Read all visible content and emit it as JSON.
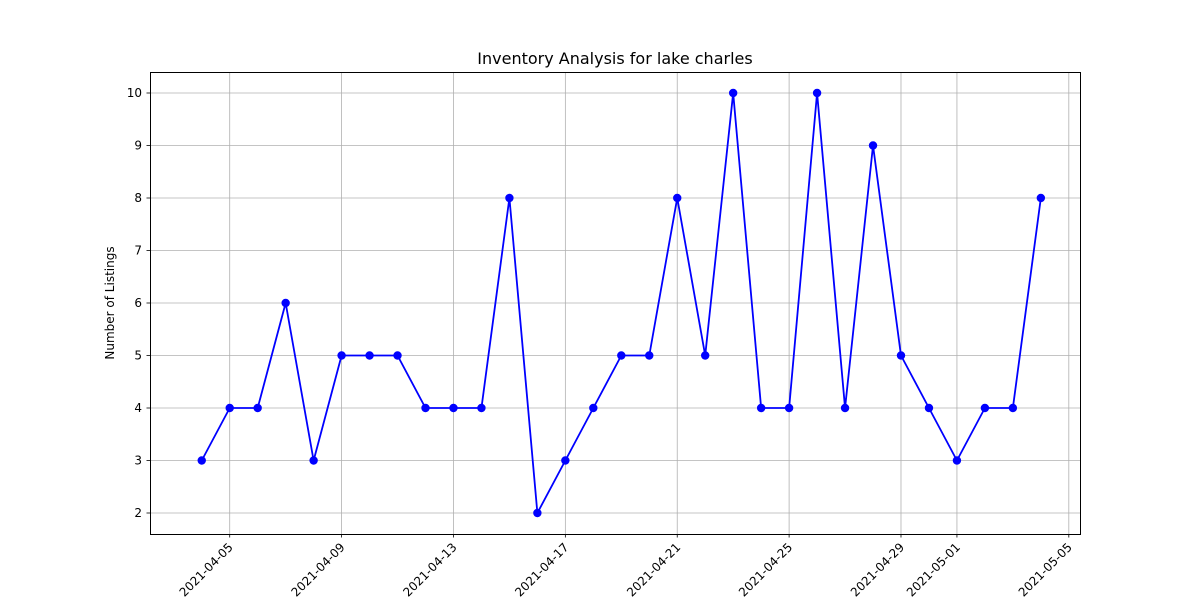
{
  "chart_data": {
    "type": "line",
    "title": "Inventory Analysis for lake charles",
    "xlabel": "",
    "ylabel": "Number of Listings",
    "grid": true,
    "x_tick_labels": [
      "2021-04-05",
      "2021-04-09",
      "2021-04-13",
      "2021-04-17",
      "2021-04-21",
      "2021-04-25",
      "2021-04-29",
      "2021-05-01",
      "2021-05-05"
    ],
    "y_ticks": [
      2,
      3,
      4,
      5,
      6,
      7,
      8,
      9,
      10
    ],
    "xlim": [
      "2021-04-02",
      "2021-05-05"
    ],
    "ylim": [
      1.6,
      10.4
    ],
    "series": [
      {
        "color": "#0000ff",
        "x": [
          "2021-04-04",
          "2021-04-05",
          "2021-04-06",
          "2021-04-07",
          "2021-04-08",
          "2021-04-09",
          "2021-04-10",
          "2021-04-11",
          "2021-04-12",
          "2021-04-13",
          "2021-04-14",
          "2021-04-15",
          "2021-04-16",
          "2021-04-17",
          "2021-04-18",
          "2021-04-19",
          "2021-04-20",
          "2021-04-21",
          "2021-04-22",
          "2021-04-23",
          "2021-04-24",
          "2021-04-25",
          "2021-04-26",
          "2021-04-27",
          "2021-04-28",
          "2021-04-29",
          "2021-04-30",
          "2021-05-01",
          "2021-05-02",
          "2021-05-03",
          "2021-05-04"
        ],
        "values": [
          3,
          4,
          4,
          6,
          3,
          5,
          5,
          5,
          4,
          4,
          4,
          8,
          2,
          3,
          4,
          5,
          5,
          8,
          5,
          10,
          4,
          4,
          10,
          4,
          9,
          5,
          4,
          3,
          4,
          4,
          8
        ]
      }
    ]
  }
}
